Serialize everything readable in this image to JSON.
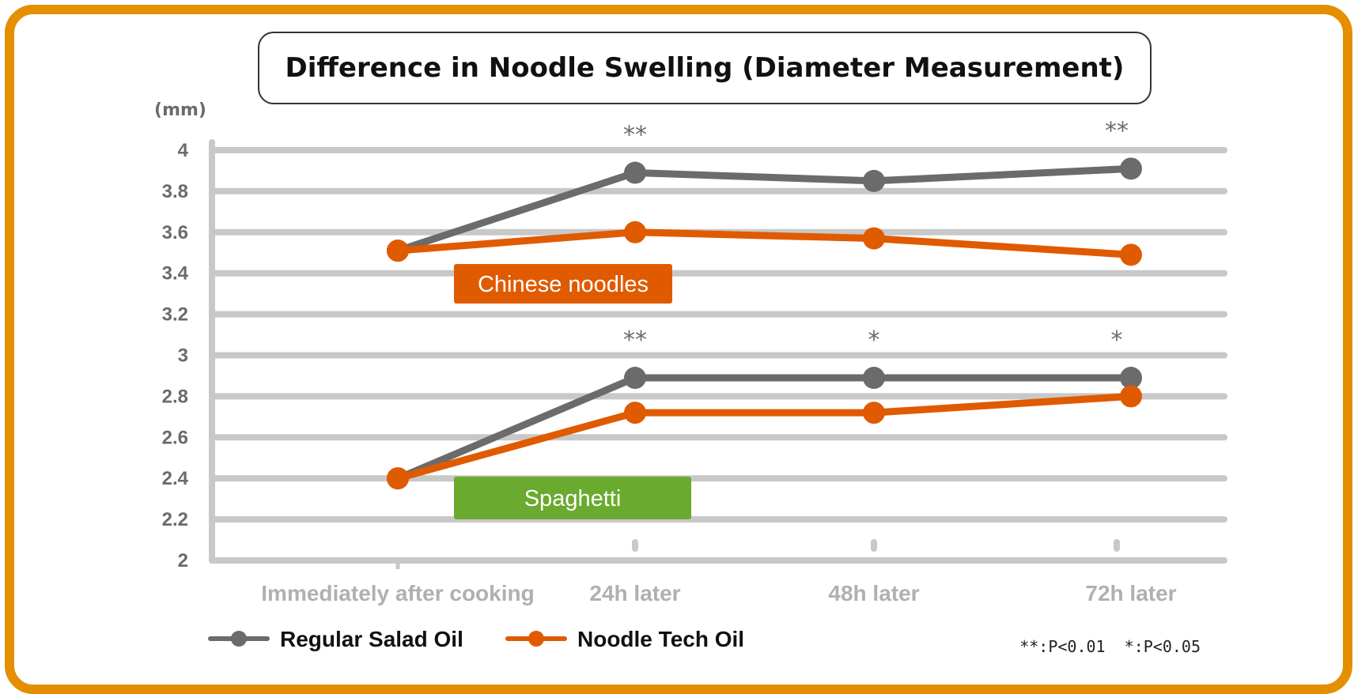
{
  "chart_data": {
    "type": "line",
    "title": "Difference in Noodle Swelling (Diameter Measurement)",
    "ylabel": "(mm)",
    "xlabel": "",
    "ylim": [
      2,
      4
    ],
    "yticks": [
      "2",
      "2.2",
      "2.4",
      "2.6",
      "2.8",
      "3",
      "3.2",
      "3.4",
      "3.6",
      "3.8",
      "4"
    ],
    "categories": [
      "Immediately after cooking",
      "24h later",
      "48h later",
      "72h later"
    ],
    "groups": [
      {
        "name": "Chinese noodles",
        "label_color": "#E05A00",
        "series": [
          {
            "name": "Regular Salad Oil",
            "color": "#6B6B6B",
            "values": [
              3.51,
              3.89,
              3.85,
              3.91
            ]
          },
          {
            "name": "Noodle Tech Oil",
            "color": "#E05A00",
            "values": [
              3.51,
              3.6,
              3.57,
              3.49
            ]
          }
        ],
        "significance": [
          "",
          "**",
          "",
          "**"
        ]
      },
      {
        "name": "Spaghetti",
        "label_color": "#6AAA2E",
        "series": [
          {
            "name": "Regular Salad Oil",
            "color": "#6B6B6B",
            "values": [
              2.4,
              2.89,
              2.89,
              2.89
            ]
          },
          {
            "name": "Noodle Tech Oil",
            "color": "#E05A00",
            "values": [
              2.4,
              2.72,
              2.72,
              2.8
            ]
          }
        ],
        "significance": [
          "",
          "**",
          "*",
          "*"
        ]
      }
    ],
    "legend": [
      {
        "name": "Regular Salad Oil",
        "color": "#6B6B6B"
      },
      {
        "name": "Noodle Tech Oil",
        "color": "#E05A00"
      }
    ],
    "footnote": "**:P<0.01  *:P<0.05",
    "grid": true,
    "legend_position": "bottom-left"
  },
  "colors": {
    "frame": "#E48E00",
    "grid": "#C8C8C8",
    "axis": "#C8C8C8"
  }
}
